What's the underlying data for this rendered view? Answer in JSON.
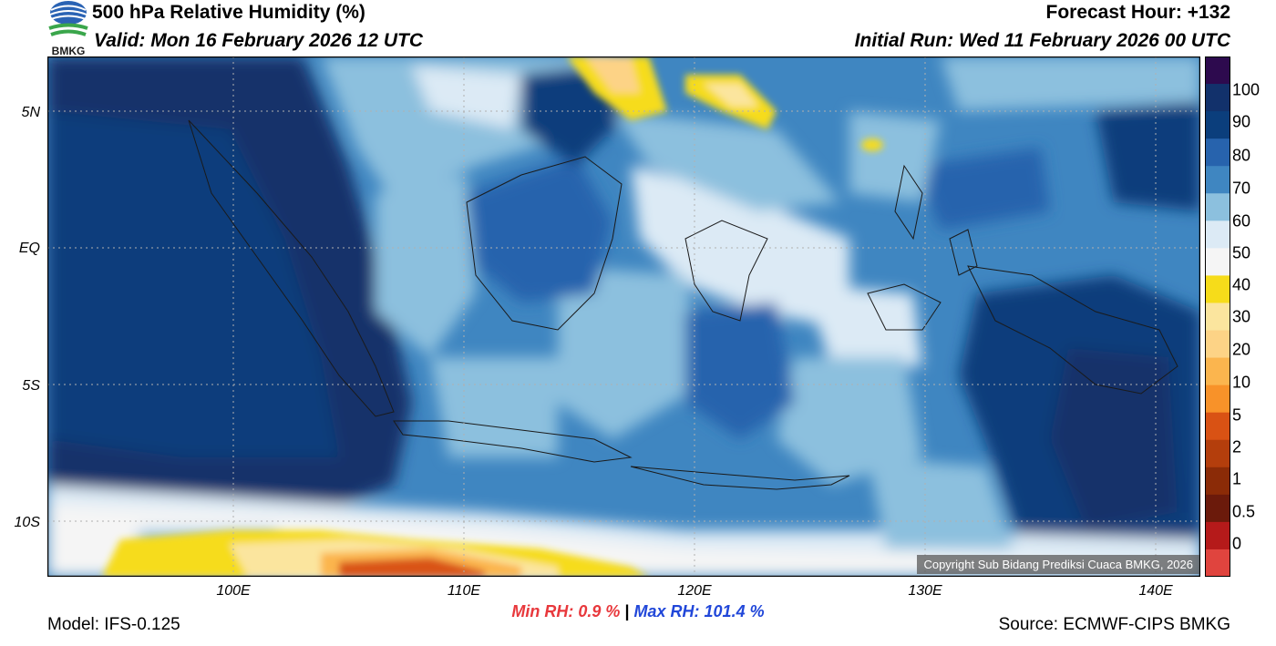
{
  "header": {
    "title": "500 hPa Relative Humidity (%)",
    "valid": "Valid: Mon 16 February 2026 12 UTC",
    "forecast_hour": "Forecast Hour: +132",
    "initial_run": "Initial Run: Wed 11 February 2026 00 UTC",
    "logo_text": "BMKG"
  },
  "map": {
    "lat_labels": [
      "5N",
      "EQ",
      "5S",
      "10S"
    ],
    "lon_labels": [
      "100E",
      "110E",
      "120E",
      "130E",
      "140E"
    ],
    "copyright": "Copyright Sub Bidang Prediksi Cuaca BMKG, 2026"
  },
  "colorbar": {
    "labels": [
      "100",
      "90",
      "80",
      "70",
      "60",
      "50",
      "40",
      "30",
      "20",
      "10",
      "5",
      "2",
      "1",
      "0.5",
      "0"
    ],
    "colors": [
      "#2d0a4e",
      "#12316b",
      "#0b3e7c",
      "#2763ad",
      "#3f86c1",
      "#8cc0de",
      "#dceaf5",
      "#f5f5f5",
      "#f6dc1a",
      "#fbe59e",
      "#fdd386",
      "#fbb54e",
      "#f89229",
      "#d95214",
      "#b43e0c",
      "#8b2b07",
      "#6b1a0b",
      "#b51a1a",
      "#e0443e"
    ]
  },
  "footer": {
    "min_rh_label": "Min RH:",
    "min_rh_value": "0.9 %",
    "separator": "|",
    "max_rh_label": "Max RH:",
    "max_rh_value": "101.4 %",
    "model": "Model: IFS-0.125",
    "source": "Source: ECMWF-CIPS BMKG"
  }
}
